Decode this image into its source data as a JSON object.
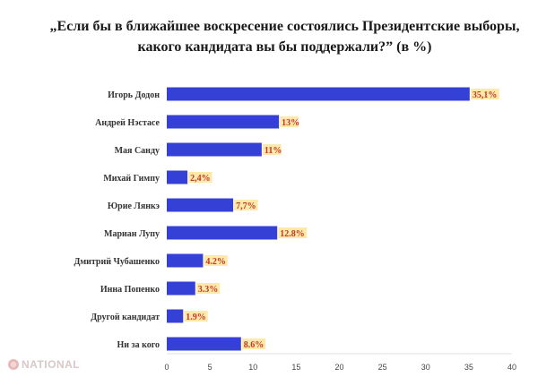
{
  "chart_data": {
    "type": "bar",
    "orientation": "horizontal",
    "title": "„Если бы в ближайшее воскресение состоялись Президентские выборы, какого кандидата вы бы поддержали?” (в %)",
    "categories": [
      "Игорь Додон",
      "Андрей Нэстасе",
      "Мая Санду",
      "Михай Гимпу",
      "Юрие Лянкэ",
      "Мариан Лупу",
      "Дмитрий Чубашенко",
      "Инна Попенко",
      "Другой кандидат",
      "Ни за кого"
    ],
    "values": [
      35.1,
      13,
      11,
      2.4,
      7.7,
      12.8,
      4.2,
      3.3,
      1.9,
      8.6
    ],
    "data_labels": [
      "35,1%",
      "13%",
      "11%",
      "2,4%",
      "7,7%",
      "12.8%",
      "4.2%",
      "3.3%",
      "1.9%",
      "8.6%"
    ],
    "xlim": [
      0,
      40
    ],
    "xticks": [
      0,
      5,
      10,
      15,
      20,
      25,
      30,
      35,
      40
    ],
    "bar_color": "#3540d6",
    "label_bg_color": "#ffe9a8",
    "label_text_color": "#c0392b",
    "grid": false
  },
  "watermark": {
    "text": "NATIONAL",
    "icon": "rose-logo-icon",
    "color": "#d9c8c8"
  }
}
